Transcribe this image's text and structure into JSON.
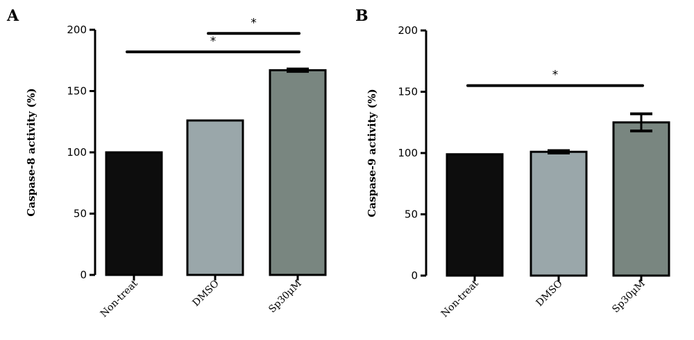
{
  "chart_data": [
    {
      "type": "bar",
      "panel": "A",
      "ylabel": "Caspase-8 activity (%)",
      "ylim": [
        0,
        200
      ],
      "yticks": [
        0,
        50,
        100,
        150,
        200
      ],
      "categories": [
        "Non-treat",
        "DMSO",
        "Sp30μM"
      ],
      "values": [
        100,
        126,
        167
      ],
      "errors": [
        0,
        0,
        1
      ],
      "bar_colors": [
        "#0d0d0d",
        "#9aa7aa",
        "#798680"
      ],
      "significance": [
        {
          "from": 0,
          "to": 2,
          "label": "*",
          "level": 182
        },
        {
          "from": 1,
          "to": 2,
          "label": "*",
          "level": 197
        }
      ]
    },
    {
      "type": "bar",
      "panel": "B",
      "ylabel": "Caspase-9 activity (%)",
      "ylim": [
        0,
        200
      ],
      "yticks": [
        0,
        50,
        100,
        150,
        200
      ],
      "categories": [
        "Non-treat",
        "DMSO",
        "Sp30μM"
      ],
      "values": [
        99,
        101,
        125
      ],
      "errors": [
        0,
        1,
        7
      ],
      "bar_colors": [
        "#0d0d0d",
        "#9aa7aa",
        "#798680"
      ],
      "significance": [
        {
          "from": 0,
          "to": 2,
          "label": "*",
          "level": 155
        }
      ]
    }
  ]
}
